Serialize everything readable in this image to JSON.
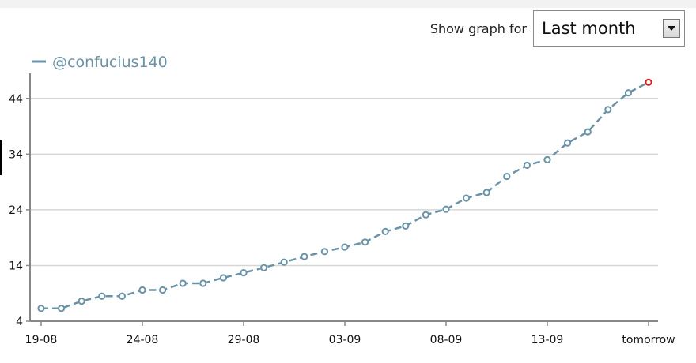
{
  "controls": {
    "label": "Show graph for",
    "selected": "Last month"
  },
  "chart_data": {
    "type": "line",
    "series": [
      {
        "name": "@confucius140",
        "color": "#6a93a8",
        "highlight_color": "#cc2222",
        "values": [
          6.3,
          6.3,
          7.6,
          8.5,
          8.5,
          9.6,
          9.6,
          10.8,
          10.8,
          11.8,
          12.7,
          13.6,
          14.6,
          15.6,
          16.5,
          17.3,
          18.2,
          20.1,
          21.1,
          23.1,
          24.1,
          26.1,
          27.1,
          30.0,
          32.0,
          33.0,
          36.0,
          38.0,
          42.0,
          45.0,
          46.9
        ]
      }
    ],
    "x_tick_labels": [
      "19-08",
      "24-08",
      "29-08",
      "03-09",
      "08-09",
      "13-09",
      "tomorrow"
    ],
    "x_tick_indices": [
      0,
      5,
      10,
      15,
      20,
      25,
      30
    ],
    "y_ticks": [
      4,
      14,
      24,
      34,
      44
    ],
    "ylim": [
      4,
      48.5
    ],
    "grid": true,
    "legend": "top-left"
  }
}
